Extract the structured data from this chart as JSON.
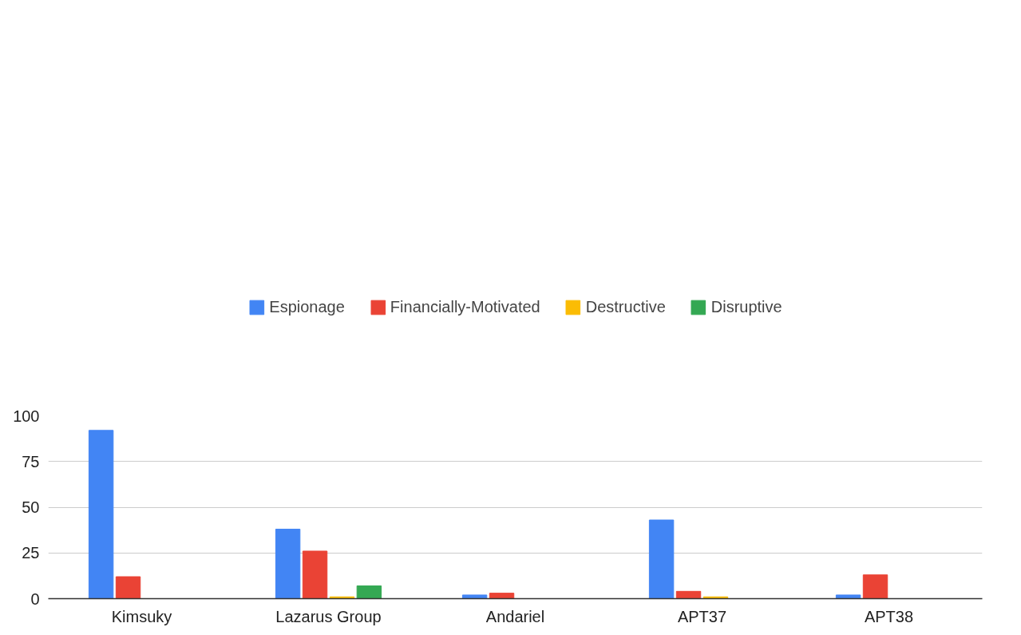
{
  "chart_data": {
    "type": "bar",
    "categories": [
      "Kimsuky",
      "Lazarus Group",
      "Andariel",
      "APT37",
      "APT38"
    ],
    "series": [
      {
        "name": "Espionage",
        "color": "#4285f4",
        "values": [
          92,
          38,
          2,
          43,
          2
        ]
      },
      {
        "name": "Financially-Motivated",
        "color": "#ea4335",
        "values": [
          12,
          26,
          3,
          4,
          13
        ]
      },
      {
        "name": "Destructive",
        "color": "#fbbc04",
        "values": [
          0,
          1,
          0,
          1,
          0
        ]
      },
      {
        "name": "Disruptive",
        "color": "#34a853",
        "values": [
          0,
          7,
          0,
          0,
          0
        ]
      }
    ],
    "ylim": [
      0,
      100
    ],
    "yticks": [
      0,
      25,
      50,
      75,
      100
    ],
    "grid": "y",
    "legend": "top"
  }
}
